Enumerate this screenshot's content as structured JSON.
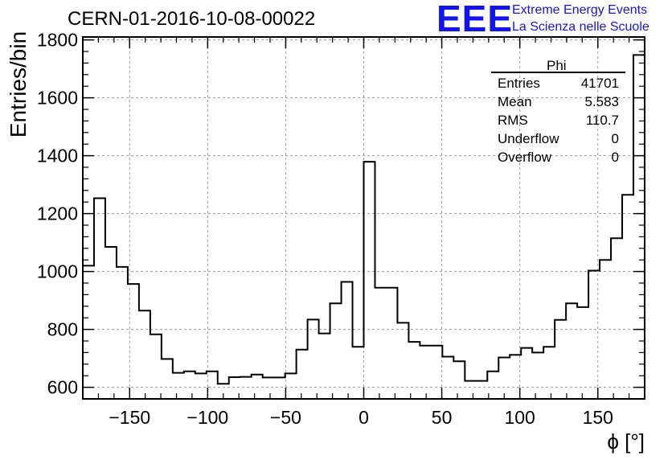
{
  "header": {
    "title": "CERN-01-2016-10-08-00022",
    "logo_text": "EEE",
    "logo_line1": "Extreme Energy Events",
    "logo_line2": "La Scienza nelle Scuole",
    "logo_color": "#1414e6"
  },
  "stats": {
    "title": "Phi",
    "rows": [
      {
        "key": "Entries",
        "value": "41701"
      },
      {
        "key": "Mean",
        "value": "5.583"
      },
      {
        "key": "RMS",
        "value": "110.7"
      },
      {
        "key": "Underflow",
        "value": "0"
      },
      {
        "key": "Overflow",
        "value": "0"
      }
    ]
  },
  "chart_data": {
    "type": "bar",
    "style": "step-histogram",
    "xlabel": "ϕ [°]",
    "ylabel": "Entries/bin",
    "xlim": [
      -180,
      180
    ],
    "ylim": [
      560,
      1810
    ],
    "grid": true,
    "bin_width": 7.2,
    "xticks": [
      -150,
      -100,
      -50,
      0,
      50,
      100,
      150
    ],
    "xtick_labels": [
      "−150",
      "−100",
      "−50",
      "0",
      "50",
      "100",
      "150"
    ],
    "yticks": [
      600,
      800,
      1000,
      1200,
      1400,
      1600,
      1800
    ],
    "ytick_labels": [
      "600",
      "800",
      "1000",
      "1200",
      "1400",
      "1600",
      "1800"
    ],
    "values": [
      1020,
      1253,
      1085,
      1016,
      957,
      865,
      783,
      698,
      650,
      655,
      648,
      655,
      612,
      635,
      636,
      644,
      634,
      634,
      648,
      730,
      834,
      786,
      890,
      964,
      740,
      1379,
      944,
      944,
      823,
      757,
      744,
      744,
      706,
      690,
      622,
      622,
      655,
      703,
      712,
      736,
      720,
      740,
      833,
      890,
      877,
      1003,
      1040,
      1115,
      1265,
      1748
    ]
  }
}
